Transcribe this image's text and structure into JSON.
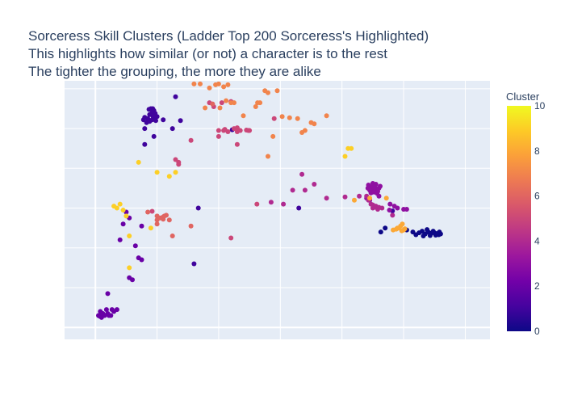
{
  "chart_data": {
    "type": "scatter",
    "title_lines": [
      "Sorceress Skill Clusters (Ladder Top 200 Sorceress's Highlighted)",
      "This highlights how similar (or not) a character is to the rest",
      "The tighter the grouping, the more they are alike"
    ],
    "colorbar": {
      "title": "Cluster",
      "range": [
        0,
        10
      ],
      "ticks": [
        0,
        2,
        4,
        6,
        8,
        10
      ],
      "colorscale": [
        "#0d0887",
        "#46039f",
        "#7201a8",
        "#9c179e",
        "#bd3786",
        "#d8576b",
        "#ed7953",
        "#fb9f3a",
        "#fdca26",
        "#f0f921"
      ]
    },
    "x_axis": {
      "range": [
        -0.5,
        6.4
      ],
      "grid_values": [
        0,
        1,
        2,
        3,
        4,
        5,
        6
      ],
      "show_tick_labels": false
    },
    "y_axis": {
      "range": [
        -0.3,
        6.2
      ],
      "grid_values": [
        0,
        1,
        2,
        3,
        4,
        5,
        6
      ],
      "show_tick_labels": false
    },
    "grid": true,
    "clusters": [
      {
        "cluster": 0,
        "points": [
          [
            5.05,
            2.45
          ],
          [
            5.15,
            2.4
          ],
          [
            5.25,
            2.38
          ],
          [
            5.3,
            2.42
          ],
          [
            5.35,
            2.35
          ],
          [
            5.4,
            2.4
          ],
          [
            5.45,
            2.37
          ],
          [
            5.5,
            2.38
          ],
          [
            5.52,
            2.32
          ],
          [
            5.55,
            2.36
          ],
          [
            5.57,
            2.33
          ],
          [
            5.6,
            2.35
          ],
          [
            5.48,
            2.42
          ],
          [
            5.2,
            2.33
          ],
          [
            5.38,
            2.46
          ],
          [
            5.43,
            2.31
          ],
          [
            4.63,
            2.4
          ],
          [
            4.7,
            2.5
          ],
          [
            5.32,
            2.3
          ],
          [
            5.58,
            2.4
          ]
        ]
      },
      {
        "cluster": 1,
        "points": [
          [
            0.9,
            5.5
          ],
          [
            0.93,
            5.5
          ],
          [
            0.95,
            5.45
          ],
          [
            0.92,
            5.4
          ],
          [
            0.97,
            5.38
          ],
          [
            0.88,
            5.35
          ],
          [
            0.95,
            5.3
          ],
          [
            0.85,
            5.25
          ],
          [
            0.92,
            5.22
          ],
          [
            0.98,
            5.2
          ],
          [
            1.1,
            5.22
          ],
          [
            0.78,
            5.22
          ],
          [
            0.83,
            5.15
          ],
          [
            0.88,
            5.18
          ],
          [
            0.8,
            5.0
          ],
          [
            0.95,
            4.8
          ],
          [
            0.8,
            4.6
          ],
          [
            1.38,
            5.2
          ],
          [
            1.3,
            5.8
          ],
          [
            1.25,
            5.0
          ],
          [
            2.22,
            4.97
          ],
          [
            1.67,
            3.0
          ],
          [
            1.6,
            1.6
          ],
          [
            0.8,
            5.28
          ],
          [
            1.0,
            5.3
          ],
          [
            3.3,
            3.0
          ],
          [
            4.82,
            2.93
          ],
          [
            0.87,
            5.48
          ],
          [
            0.93,
            5.32
          ]
        ]
      },
      {
        "cluster": 2,
        "points": [
          [
            0.05,
            0.3
          ],
          [
            0.1,
            0.25
          ],
          [
            0.15,
            0.3
          ],
          [
            0.2,
            0.35
          ],
          [
            0.25,
            0.3
          ],
          [
            0.3,
            0.4
          ],
          [
            0.08,
            0.4
          ],
          [
            0.12,
            0.35
          ],
          [
            0.18,
            0.45
          ],
          [
            0.22,
            0.3
          ],
          [
            0.27,
            0.45
          ],
          [
            0.35,
            0.45
          ],
          [
            0.07,
            0.28
          ],
          [
            0.2,
            0.85
          ],
          [
            0.55,
            1.25
          ],
          [
            0.6,
            1.2
          ],
          [
            0.7,
            1.75
          ],
          [
            0.75,
            1.7
          ],
          [
            0.65,
            2.05
          ],
          [
            0.4,
            2.2
          ],
          [
            0.45,
            2.6
          ],
          [
            0.55,
            2.75
          ],
          [
            0.75,
            2.55
          ],
          [
            0.5,
            2.9
          ],
          [
            0.1,
            0.35
          ]
        ]
      },
      {
        "cluster": 3,
        "points": [
          [
            4.5,
            3.45
          ],
          [
            4.55,
            3.48
          ],
          [
            4.58,
            3.42
          ],
          [
            4.52,
            3.4
          ],
          [
            4.5,
            3.55
          ],
          [
            4.55,
            3.6
          ],
          [
            4.6,
            3.5
          ],
          [
            4.48,
            3.52
          ],
          [
            4.45,
            3.45
          ],
          [
            4.42,
            3.5
          ],
          [
            4.57,
            3.37
          ],
          [
            4.62,
            3.55
          ],
          [
            4.4,
            3.25
          ],
          [
            4.45,
            3.2
          ],
          [
            4.6,
            3.3
          ],
          [
            4.78,
            3.1
          ],
          [
            4.85,
            3.05
          ],
          [
            4.9,
            3.0
          ],
          [
            5.0,
            2.97
          ],
          [
            5.05,
            2.97
          ],
          [
            4.77,
            2.95
          ],
          [
            4.47,
            3.38
          ],
          [
            4.53,
            3.52
          ],
          [
            4.43,
            3.58
          ],
          [
            4.5,
            3.62
          ]
        ]
      },
      {
        "cluster": 4,
        "points": [
          [
            4.5,
            3.0
          ],
          [
            4.55,
            3.05
          ],
          [
            4.58,
            2.97
          ],
          [
            4.47,
            3.1
          ],
          [
            4.43,
            3.2
          ],
          [
            4.4,
            3.3
          ],
          [
            4.6,
            3.02
          ],
          [
            4.65,
            3.0
          ],
          [
            4.52,
            3.02
          ],
          [
            3.75,
            3.25
          ],
          [
            3.55,
            3.6
          ],
          [
            3.4,
            3.45
          ],
          [
            3.35,
            3.85
          ],
          [
            3.2,
            3.45
          ],
          [
            3.05,
            3.1
          ],
          [
            2.85,
            3.15
          ],
          [
            4.05,
            3.28
          ],
          [
            4.28,
            3.3
          ],
          [
            4.82,
            2.82
          ],
          [
            4.5,
            3.08
          ]
        ]
      },
      {
        "cluster": 5,
        "points": [
          [
            1.35,
            4.15
          ],
          [
            1.35,
            4.1
          ],
          [
            1.3,
            4.22
          ],
          [
            0.92,
            2.92
          ],
          [
            2.2,
            2.25
          ],
          [
            2.3,
            4.6
          ],
          [
            2.0,
            4.8
          ],
          [
            2.08,
            4.95
          ],
          [
            2.25,
            5.0
          ],
          [
            2.3,
            4.92
          ],
          [
            2.35,
            4.95
          ],
          [
            2.5,
            4.95
          ],
          [
            2.0,
            4.95
          ],
          [
            2.15,
            4.92
          ],
          [
            2.1,
            4.98
          ],
          [
            2.62,
            3.1
          ],
          [
            2.9,
            5.25
          ],
          [
            1.85,
            5.65
          ],
          [
            2.05,
            5.65
          ],
          [
            2.2,
            5.68
          ],
          [
            1.55,
            4.7
          ],
          [
            2.48,
            4.95
          ],
          [
            1.92,
            5.55
          ],
          [
            2.45,
            4.96
          ],
          [
            2.3,
            5.02
          ]
        ]
      },
      {
        "cluster": 6,
        "points": [
          [
            1.0,
            2.8
          ],
          [
            1.05,
            2.75
          ],
          [
            1.1,
            2.78
          ],
          [
            1.15,
            2.82
          ],
          [
            1.1,
            2.72
          ],
          [
            1.0,
            2.7
          ],
          [
            1.2,
            2.7
          ],
          [
            1.12,
            2.8
          ],
          [
            0.85,
            2.9
          ],
          [
            1.0,
            2.6
          ],
          [
            1.55,
            2.55
          ],
          [
            1.25,
            2.3
          ],
          [
            1.9,
            5.62
          ]
        ]
      },
      {
        "cluster": 7,
        "points": [
          [
            1.95,
            6.1
          ],
          [
            2.0,
            6.12
          ],
          [
            2.08,
            6.05
          ],
          [
            2.15,
            6.1
          ],
          [
            2.12,
            5.7
          ],
          [
            2.2,
            5.65
          ],
          [
            2.4,
            5.32
          ],
          [
            2.6,
            5.55
          ],
          [
            2.75,
            5.95
          ],
          [
            2.8,
            5.9
          ],
          [
            2.95,
            5.95
          ],
          [
            2.8,
            4.3
          ],
          [
            3.03,
            5.3
          ],
          [
            3.15,
            5.27
          ],
          [
            3.28,
            5.25
          ],
          [
            3.5,
            5.15
          ],
          [
            3.55,
            5.12
          ],
          [
            3.75,
            5.32
          ],
          [
            3.35,
            4.9
          ],
          [
            3.4,
            4.95
          ],
          [
            2.63,
            5.65
          ],
          [
            2.67,
            5.65
          ],
          [
            2.25,
            5.65
          ],
          [
            2.02,
            5.52
          ],
          [
            1.78,
            5.52
          ],
          [
            1.85,
            6.02
          ],
          [
            1.6,
            6.12
          ],
          [
            1.7,
            6.12
          ],
          [
            2.88,
            4.8
          ]
        ]
      },
      {
        "cluster": 8,
        "points": [
          [
            4.2,
            3.2
          ],
          [
            4.45,
            3.25
          ],
          [
            4.72,
            3.25
          ],
          [
            4.9,
            2.5
          ],
          [
            4.95,
            2.55
          ],
          [
            5.0,
            2.45
          ],
          [
            4.92,
            2.5
          ],
          [
            4.97,
            2.43
          ],
          [
            5.02,
            2.48
          ],
          [
            4.83,
            2.45
          ],
          [
            4.88,
            2.47
          ],
          [
            4.98,
            2.6
          ]
        ]
      },
      {
        "cluster": 9,
        "points": [
          [
            0.3,
            3.05
          ],
          [
            0.35,
            3.0
          ],
          [
            0.4,
            3.1
          ],
          [
            0.45,
            2.95
          ],
          [
            0.5,
            2.8
          ],
          [
            0.55,
            1.5
          ],
          [
            0.55,
            2.3
          ],
          [
            0.9,
            2.5
          ],
          [
            1.0,
            3.9
          ],
          [
            1.2,
            3.8
          ],
          [
            1.3,
            3.9
          ],
          [
            0.7,
            4.15
          ],
          [
            4.15,
            4.5
          ],
          [
            4.1,
            4.5
          ],
          [
            4.05,
            4.3
          ]
        ]
      }
    ]
  }
}
